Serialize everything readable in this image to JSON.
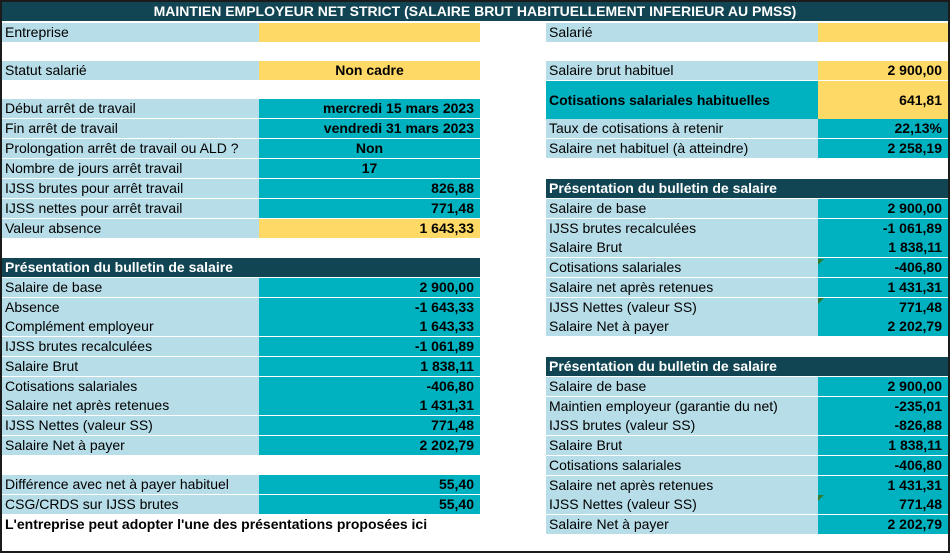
{
  "title": "MAINTIEN EMPLOYEUR  NET STRICT (SALAIRE BRUT HABITUELLEMENT INFERIEUR AU PMSS)",
  "left": {
    "entreprise_label": "Entreprise",
    "entreprise_value": "",
    "statut_label": "Statut salarié",
    "statut_value": "Non cadre",
    "debut_label": "Début arrêt de travail",
    "debut_value": "mercredi 15 mars 2023",
    "fin_label": "Fin arrêt de travail",
    "fin_value": "vendredi 31 mars 2023",
    "prolongation_label": "Prolongation arrêt de travail ou ALD ?",
    "prolongation_value": "Non",
    "nb_jours_label": "Nombre de jours arrêt travail",
    "nb_jours_value": "17",
    "ijss_brutes_label": "IJSS brutes pour arrêt travail",
    "ijss_brutes_value": "826,88",
    "ijss_nettes_label": "IJSS nettes pour arrêt travail",
    "ijss_nettes_value": "771,48",
    "valeur_absence_label": "Valeur absence",
    "valeur_absence_value": "1 643,33",
    "bulletin_header": "Présentation du bulletin de salaire",
    "bulletin_rows": [
      {
        "label": "Salaire de base",
        "value": "2 900,00"
      },
      {
        "label": "Absence",
        "value": "-1 643,33"
      },
      {
        "label": "Complément employeur",
        "value": "1 643,33"
      },
      {
        "label": "IJSS brutes recalculées",
        "value": "-1 061,89"
      },
      {
        "label": "Salaire Brut",
        "value": "1 838,11"
      },
      {
        "label": "Cotisations salariales",
        "value": "-406,80"
      },
      {
        "label": "Salaire net après retenues",
        "value": "1 431,31"
      },
      {
        "label": "IJSS Nettes (valeur SS)",
        "value": "771,48"
      },
      {
        "label": "Salaire Net à payer",
        "value": "2 202,79"
      }
    ],
    "difference_label": "Différence avec net à payer habituel",
    "difference_value": "55,40",
    "csg_label": "CSG/CRDS sur IJSS brutes",
    "csg_value": "55,40",
    "note": "L'entreprise peut adopter l'une  des présentations proposées ici"
  },
  "right": {
    "salarie_label": "Salarié",
    "salarie_value": "",
    "brut_habituel_label": "Salaire brut habituel",
    "brut_habituel_value": "2 900,00",
    "cotis_hab_label": "Cotisations salariales habituelles",
    "cotis_hab_value": "641,81",
    "taux_label": "Taux de cotisations à retenir",
    "taux_value": "22,13%",
    "net_hab_label": "Salaire net habituel (à atteindre)",
    "net_hab_value": "2 258,19",
    "bulletin1_header": "Présentation du bulletin de salaire",
    "bulletin1_rows": [
      {
        "label": "Salaire de base",
        "value": "2 900,00"
      },
      {
        "label": "IJSS brutes recalculées",
        "value": "-1 061,89"
      },
      {
        "label": "Salaire Brut",
        "value": "1 838,11"
      },
      {
        "label": "Cotisations salariales",
        "value": "-406,80"
      },
      {
        "label": "Salaire net après retenues",
        "value": "1 431,31"
      },
      {
        "label": "IJSS Nettes (valeur SS)",
        "value": "771,48"
      },
      {
        "label": "Salaire Net à payer",
        "value": "2 202,79"
      }
    ],
    "bulletin2_header": "Présentation du bulletin de salaire",
    "bulletin2_rows": [
      {
        "label": "Salaire de base",
        "value": "2 900,00"
      },
      {
        "label": "Maintien employeur (garantie du net)",
        "value": "-235,01"
      },
      {
        "label": "IJSS brutes (valeur SS)",
        "value": "-826,88"
      },
      {
        "label": "Salaire Brut",
        "value": "1 838,11"
      },
      {
        "label": "Cotisations salariales",
        "value": "-406,80"
      },
      {
        "label": "Salaire net après retenues",
        "value": "1 431,31"
      },
      {
        "label": "IJSS Nettes (valeur SS)",
        "value": "771,48"
      },
      {
        "label": "Salaire Net à payer",
        "value": "2 202,79"
      }
    ]
  },
  "colors": {
    "header_dark": "#124553",
    "label_bg": "#b7dde8",
    "value_teal": "#00b2c0",
    "value_yellow": "#ffd966"
  }
}
